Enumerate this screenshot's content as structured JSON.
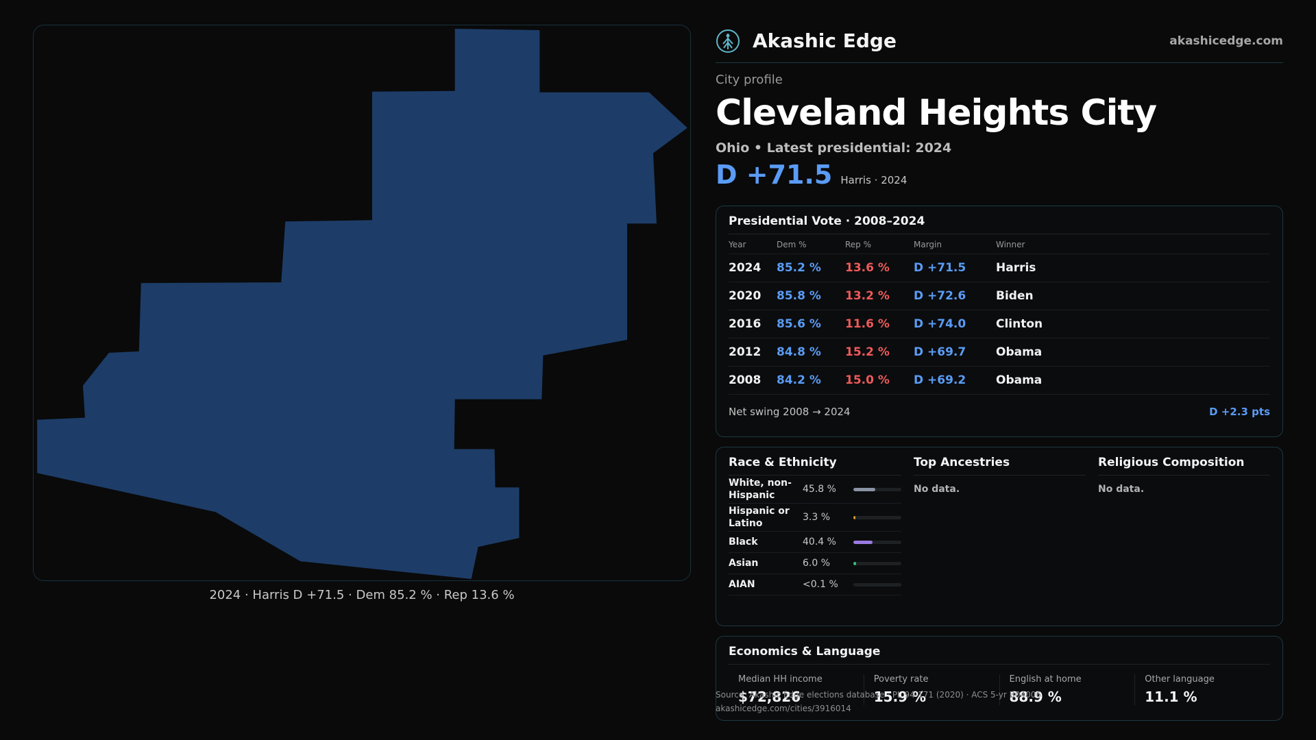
{
  "brand": {
    "name": "Akashic Edge",
    "url": "akashicedge.com",
    "logo_icon": "tree-logo-icon"
  },
  "profile": {
    "kicker": "City profile",
    "title": "Cleveland Heights City",
    "subtitle": "Ohio • Latest presidential: 2024",
    "margin": "D +71.5",
    "margin_note": "Harris · 2024"
  },
  "map": {
    "caption": "2024 · Harris D +71.5 · Dem 85.2 % · Rep 13.6 %",
    "fill_color": "#1d3d68",
    "border_color": "#17313a"
  },
  "vote": {
    "title": "Presidential Vote · 2008–2024",
    "headers": [
      "Year",
      "Dem %",
      "Rep %",
      "Margin",
      "Winner"
    ],
    "rows": [
      {
        "year": "2024",
        "dem": "85.2 %",
        "rep": "13.6 %",
        "margin": "D +71.5",
        "winner": "Harris"
      },
      {
        "year": "2020",
        "dem": "85.8 %",
        "rep": "13.2 %",
        "margin": "D +72.6",
        "winner": "Biden"
      },
      {
        "year": "2016",
        "dem": "85.6 %",
        "rep": "11.6 %",
        "margin": "D +74.0",
        "winner": "Clinton"
      },
      {
        "year": "2012",
        "dem": "84.8 %",
        "rep": "15.2 %",
        "margin": "D +69.7",
        "winner": "Obama"
      },
      {
        "year": "2008",
        "dem": "84.2 %",
        "rep": "15.0 %",
        "margin": "D +69.2",
        "winner": "Obama"
      }
    ],
    "swing_label": "Net swing 2008 → 2024",
    "swing_value": "D +2.3 pts",
    "colors": {
      "dem": "#5a9cf5",
      "rep": "#ef5a5a"
    }
  },
  "race": {
    "title": "Race & Ethnicity",
    "rows": [
      {
        "label": "White, non-Hispanic",
        "value": "45.8 %",
        "share": 0.458,
        "color": "#8a93a3"
      },
      {
        "label": "Hispanic or Latino",
        "value": "3.3 %",
        "share": 0.033,
        "color": "#e0a030"
      },
      {
        "label": "Black",
        "value": "40.4 %",
        "share": 0.404,
        "color": "#9a7ae0"
      },
      {
        "label": "Asian",
        "value": "6.0 %",
        "share": 0.06,
        "color": "#2fc47a"
      },
      {
        "label": "AIAN",
        "value": "<0.1 %",
        "share": 0.0,
        "color": "#8a93a3"
      }
    ]
  },
  "ancestries": {
    "title": "Top Ancestries",
    "empty": "No data."
  },
  "religion": {
    "title": "Religious Composition",
    "empty": "No data."
  },
  "econ": {
    "title": "Economics & Language",
    "cells": [
      {
        "label": "Median HH income",
        "value": "$72,826"
      },
      {
        "label": "Poverty rate",
        "value": "15.9 %"
      },
      {
        "label": "English at home",
        "value": "88.9 %"
      },
      {
        "label": "Other language",
        "value": "11.1 %"
      }
    ]
  },
  "footer": {
    "source": "Source: Akashic Edge elections database · PL 94-171 (2020) · ACS 5-yr B04006",
    "link": "akashicedge.com/cities/3916014"
  }
}
